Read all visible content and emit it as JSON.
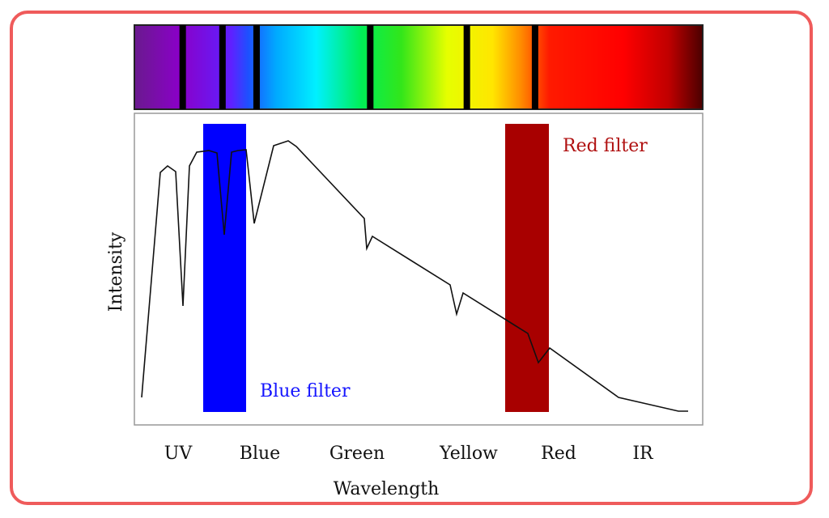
{
  "colors": {
    "border": "#ef5b5b",
    "blue_filter": "#0000ff",
    "red_filter": "#a80000",
    "blue_label": "#1414ff",
    "red_label": "#b01010",
    "curve": "#111111"
  },
  "spectrum": {
    "stops": [
      {
        "pos": 0.0,
        "color": "#6a1a8e"
      },
      {
        "pos": 0.08,
        "color": "#8a00c8"
      },
      {
        "pos": 0.17,
        "color": "#6020ff"
      },
      {
        "pos": 0.2,
        "color": "#1e50ff"
      },
      {
        "pos": 0.25,
        "color": "#00aaff"
      },
      {
        "pos": 0.32,
        "color": "#00f0ff"
      },
      {
        "pos": 0.4,
        "color": "#00ee55"
      },
      {
        "pos": 0.47,
        "color": "#33e61a"
      },
      {
        "pos": 0.55,
        "color": "#e6ff00"
      },
      {
        "pos": 0.63,
        "color": "#ffe600"
      },
      {
        "pos": 0.68,
        "color": "#ff8c00"
      },
      {
        "pos": 0.73,
        "color": "#ff1a00"
      },
      {
        "pos": 0.86,
        "color": "#ff0000"
      },
      {
        "pos": 0.94,
        "color": "#c00000"
      },
      {
        "pos": 1.0,
        "color": "#4a0000"
      }
    ],
    "dark_lines": [
      0.085,
      0.155,
      0.215,
      0.415,
      0.585,
      0.705
    ]
  },
  "diagram": {
    "y_label": "Intensity",
    "x_label": "Wavelength",
    "x_ticks": [
      "UV",
      "Blue",
      "Green",
      "Yellow",
      "Red",
      "IR"
    ],
    "blue_filter_label": "Blue filter",
    "red_filter_label": "Red filter"
  }
}
